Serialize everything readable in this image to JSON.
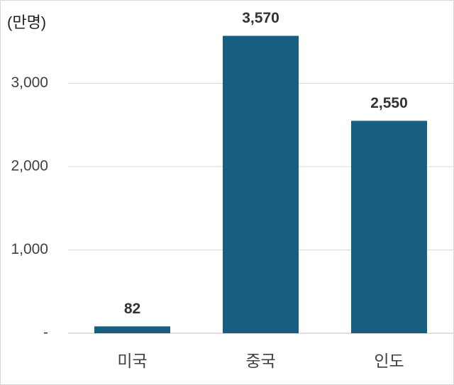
{
  "chart_data": {
    "type": "bar",
    "title": "(만명)",
    "categories": [
      "미국",
      "중국",
      "인도"
    ],
    "values": [
      82,
      3570,
      2550
    ],
    "value_labels": [
      "82",
      "3,570",
      "2,550"
    ],
    "color": "#175e80",
    "ylim": [
      0,
      4000
    ],
    "yticks": [
      {
        "value": 0,
        "label": "-"
      },
      {
        "value": 1000,
        "label": "1,000"
      },
      {
        "value": 2000,
        "label": "2,000"
      },
      {
        "value": 3000,
        "label": "3,000"
      }
    ],
    "grid": true
  }
}
